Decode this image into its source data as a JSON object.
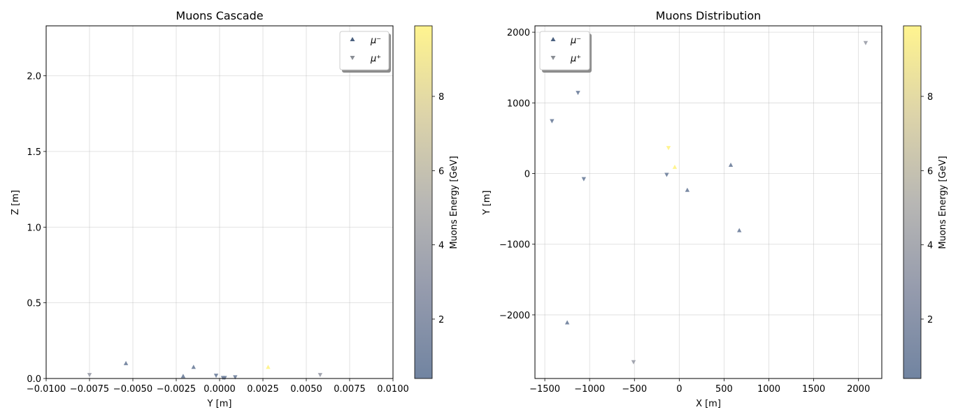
{
  "chart_data": [
    {
      "type": "scatter",
      "title": "Muons Cascade",
      "xlabel": "Y [m]",
      "ylabel": "Z [m]",
      "xlim": [
        -0.01,
        0.01
      ],
      "ylim": [
        0,
        2.33
      ],
      "xticks": [
        -0.01,
        -0.0075,
        -0.005,
        -0.0025,
        0.0,
        0.0025,
        0.005,
        0.0075,
        0.01
      ],
      "xticklabels": [
        "−0.0100",
        "−0.0075",
        "−0.0050",
        "−0.0025",
        "0.0000",
        "0.0025",
        "0.0050",
        "0.0075",
        "0.0100"
      ],
      "yticks": [
        0.0,
        0.5,
        1.0,
        1.5,
        2.0
      ],
      "yticklabels": [
        "0.0",
        "0.5",
        "1.0",
        "1.5",
        "2.0"
      ],
      "grid": true,
      "legend_position": "top-right",
      "series": [
        {
          "name": "μ⁻",
          "marker": "triangle-up",
          "x": [
            -0.0054,
            -0.0021,
            -0.0015,
            0.0028
          ],
          "y": [
            0.1,
            0.015,
            0.075,
            0.075
          ],
          "energy": [
            1.0,
            1.0,
            1.0,
            9.9
          ]
        },
        {
          "name": "μ⁺",
          "marker": "triangle-down",
          "x": [
            -0.0075,
            -0.0002,
            0.0002,
            0.0003,
            0.0009,
            0.0058
          ],
          "y": [
            0.025,
            0.02,
            0.005,
            0.005,
            0.01,
            0.025
          ],
          "energy": [
            3.7,
            1.0,
            1.0,
            1.0,
            1.0,
            3.7
          ]
        }
      ],
      "colorbar": {
        "label": "Muons Energy [GeV]",
        "range": [
          0.4,
          9.9
        ],
        "ticks": [
          2,
          4,
          6,
          8
        ],
        "ticklabels": [
          "2",
          "4",
          "6",
          "8"
        ],
        "colormap": "cividis"
      }
    },
    {
      "type": "scatter",
      "title": "Muons Distribution",
      "xlabel": "X [m]",
      "ylabel": "Y [m]",
      "xlim": [
        -1610,
        2260
      ],
      "ylim": [
        -2900,
        2090
      ],
      "xticks": [
        -1500,
        -1000,
        -500,
        0,
        500,
        1000,
        1500,
        2000
      ],
      "xticklabels": [
        "−1500",
        "−1000",
        "−500",
        "0",
        "500",
        "1000",
        "1500",
        "2000"
      ],
      "yticks": [
        -2000,
        -1000,
        0,
        1000,
        2000
      ],
      "yticklabels": [
        "−2000",
        "−1000",
        "0",
        "1000",
        "2000"
      ],
      "grid": true,
      "legend_position": "top-left",
      "series": [
        {
          "name": "μ⁻",
          "marker": "triangle-up",
          "x": [
            -1250,
            90,
            575,
            670,
            -50
          ],
          "y": [
            -2110,
            -235,
            120,
            -805,
            90
          ],
          "energy": [
            1.0,
            1.0,
            1.0,
            1.0,
            9.9
          ]
        },
        {
          "name": "μ⁺",
          "marker": "triangle-down",
          "x": [
            -1420,
            -1130,
            -1065,
            -140,
            -120,
            -510,
            2080
          ],
          "y": [
            745,
            1145,
            -75,
            -15,
            365,
            -2665,
            1850
          ],
          "energy": [
            1.0,
            1.0,
            1.0,
            1.0,
            9.9,
            3.7,
            3.7
          ]
        }
      ],
      "colorbar": {
        "label": "Muons Energy [GeV]",
        "range": [
          0.4,
          9.9
        ],
        "ticks": [
          2,
          4,
          6,
          8
        ],
        "ticklabels": [
          "2",
          "4",
          "6",
          "8"
        ],
        "colormap": "cividis"
      }
    }
  ]
}
